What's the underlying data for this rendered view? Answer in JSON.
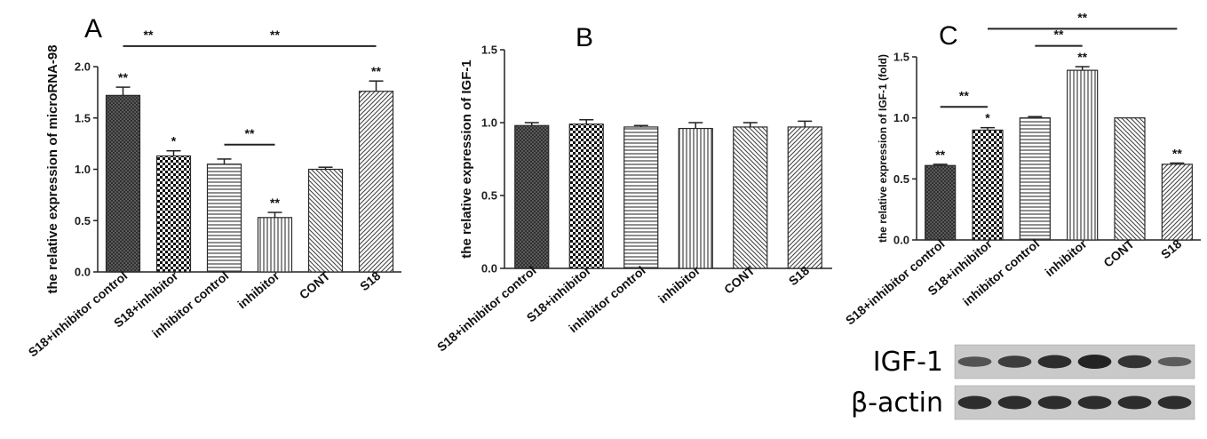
{
  "chart_data": [
    {
      "type": "bar",
      "panel": "A",
      "ylabel": "the relative expression of microRNA-98",
      "categories": [
        "S18+inhibitor control",
        "S18+inhibitor",
        "inhibitor control",
        "inhibitor",
        "CONT",
        "S18"
      ],
      "values": [
        1.72,
        1.13,
        1.05,
        0.53,
        1.0,
        1.76
      ],
      "errors": [
        0.08,
        0.05,
        0.05,
        0.05,
        0.02,
        0.1
      ],
      "ylim": [
        0,
        2.0
      ],
      "yticks": [
        0.0,
        0.5,
        1.0,
        1.5,
        2.0
      ],
      "tick_labels": [
        "0.0",
        "0.5",
        "1.0",
        "1.5",
        "2.0"
      ],
      "bar_markers": [
        "**",
        "*",
        "",
        "**",
        "",
        "**"
      ],
      "comparisons": [
        {
          "from": 0,
          "to": 1,
          "label": "**",
          "level": 2.2
        },
        {
          "from": 1,
          "to": 5,
          "label": "**",
          "level": 2.2
        },
        {
          "from": 2,
          "to": 3,
          "label": "**",
          "level": 1.24
        }
      ]
    },
    {
      "type": "bar",
      "panel": "B",
      "ylabel": "the relative expression of IGF-1",
      "categories": [
        "S18+inhibitor control",
        "S18+inhibitor",
        "inhibitor control",
        "inhibitor",
        "CONT",
        "S18"
      ],
      "values": [
        0.98,
        0.99,
        0.97,
        0.96,
        0.97,
        0.97
      ],
      "errors": [
        0.02,
        0.03,
        0.01,
        0.04,
        0.03,
        0.04
      ],
      "ylim": [
        0,
        1.5
      ],
      "yticks": [
        0.0,
        0.5,
        1.0,
        1.5
      ],
      "tick_labels": [
        "0.0",
        "0.5",
        "1.0",
        "1.5"
      ],
      "bar_markers": [
        "",
        "",
        "",
        "",
        "",
        ""
      ],
      "comparisons": []
    },
    {
      "type": "bar",
      "panel": "C",
      "ylabel": "the relative expression of IGF-1 (fold)",
      "categories": [
        "S18+inhibitor control",
        "S18+inhibitor",
        "inhibitor control",
        "inhibitor",
        "CONT",
        "S18"
      ],
      "values": [
        0.61,
        0.9,
        1.0,
        1.39,
        1.0,
        0.62
      ],
      "errors": [
        0.01,
        0.02,
        0.01,
        0.03,
        0.0,
        0.01
      ],
      "ylim": [
        0,
        1.5
      ],
      "yticks": [
        0.0,
        0.5,
        1.0,
        1.5
      ],
      "tick_labels": [
        "0.0",
        "0.5",
        "1.0",
        "1.5"
      ],
      "bar_markers": [
        "**",
        "*",
        "",
        "**",
        "",
        "**"
      ],
      "comparisons": [
        {
          "from": 0,
          "to": 1,
          "label": "**",
          "level": 1.09
        },
        {
          "from": 2,
          "to": 3,
          "label": "**",
          "level": 1.59
        },
        {
          "from": 1,
          "to": 5,
          "label": "**",
          "level": 1.73
        }
      ]
    }
  ],
  "blot": {
    "rows": [
      {
        "label": "IGF-1",
        "intensity": [
          0.55,
          0.75,
          0.9,
          1.0,
          0.85,
          0.45
        ]
      },
      {
        "label": "β-actin",
        "intensity": [
          0.9,
          0.9,
          0.9,
          0.9,
          0.9,
          0.9
        ]
      }
    ]
  },
  "style": {
    "bar_fill": "#ffffff",
    "bar_stroke": "#2a2a2a",
    "axis_color": "#222222",
    "blot_bg": "#c9c9c9",
    "band_color": "#1a1a1a"
  }
}
